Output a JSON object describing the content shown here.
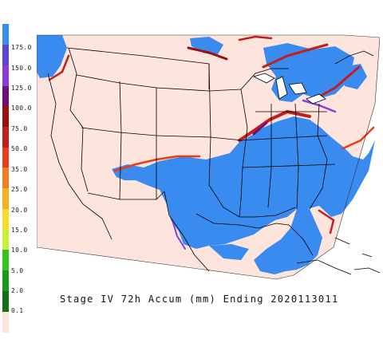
{
  "caption": "Stage IV 72h Accum (mm) Ending 2020113011",
  "legend": [
    {
      "label": "175.0",
      "color": "#3a8bf0"
    },
    {
      "label": "150.0",
      "color": "#5f43d6"
    },
    {
      "label": "125.0",
      "color": "#8a3bd9"
    },
    {
      "label": "100.0",
      "color": "#6e0f7a"
    },
    {
      "label": "75.0",
      "color": "#9c1010"
    },
    {
      "label": "50.0",
      "color": "#c21e1e"
    },
    {
      "label": "35.0",
      "color": "#ea3a1a"
    },
    {
      "label": "25.0",
      "color": "#f07e1e"
    },
    {
      "label": "20.0",
      "color": "#f5b020"
    },
    {
      "label": "15.0",
      "color": "#f8dc2a"
    },
    {
      "label": "10.0",
      "color": "#c8f034"
    },
    {
      "label": "5.0",
      "color": "#34c41e"
    },
    {
      "label": "2.0",
      "color": "#1a9a1a"
    },
    {
      "label": "0.1",
      "color": "#137013"
    },
    {
      "label": "",
      "color": "#fde4dc"
    }
  ],
  "colors": {
    "background": "#fde4dc",
    "heavy": "#3a8bf0",
    "border": "#000000"
  }
}
